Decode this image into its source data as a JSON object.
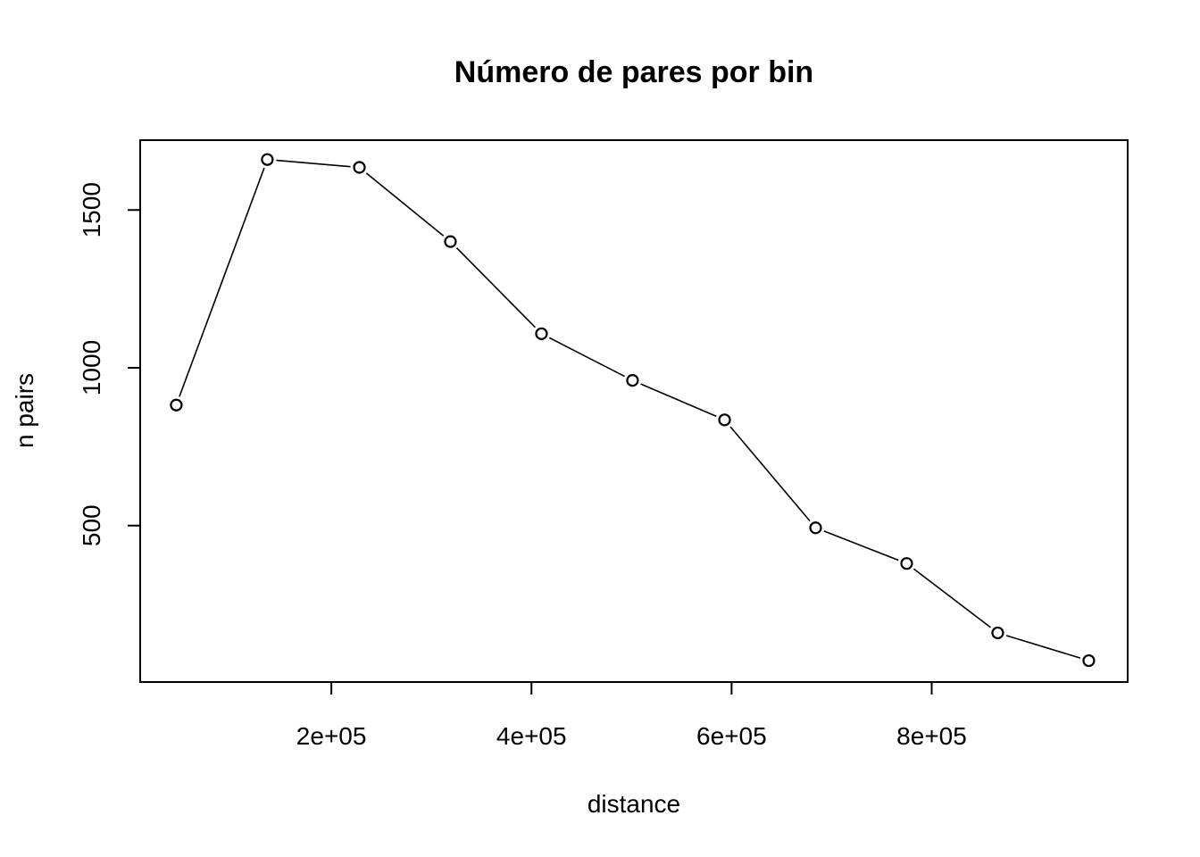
{
  "chart_data": {
    "type": "line",
    "title": "Número de pares por bin",
    "xlabel": "distance",
    "ylabel": "n pairs",
    "xlim": [
      0,
      1000000
    ],
    "ylim": [
      0,
      1750
    ],
    "grid": false,
    "legend": "none",
    "x_ticks": [
      {
        "value": 200000,
        "label": "2e+05"
      },
      {
        "value": 400000,
        "label": "4e+05"
      },
      {
        "value": 600000,
        "label": "6e+05"
      },
      {
        "value": 800000,
        "label": "8e+05"
      }
    ],
    "y_ticks": [
      {
        "value": 500,
        "label": "500"
      },
      {
        "value": 1000,
        "label": "1000"
      },
      {
        "value": 1500,
        "label": "1500"
      }
    ],
    "series": [
      {
        "x": [
          45000,
          136000,
          228000,
          319000,
          410000,
          501000,
          593000,
          684000,
          775000,
          866000,
          957000
        ],
        "values": [
          882,
          1660,
          1635,
          1400,
          1108,
          960,
          835,
          493,
          380,
          160,
          72
        ]
      }
    ]
  }
}
